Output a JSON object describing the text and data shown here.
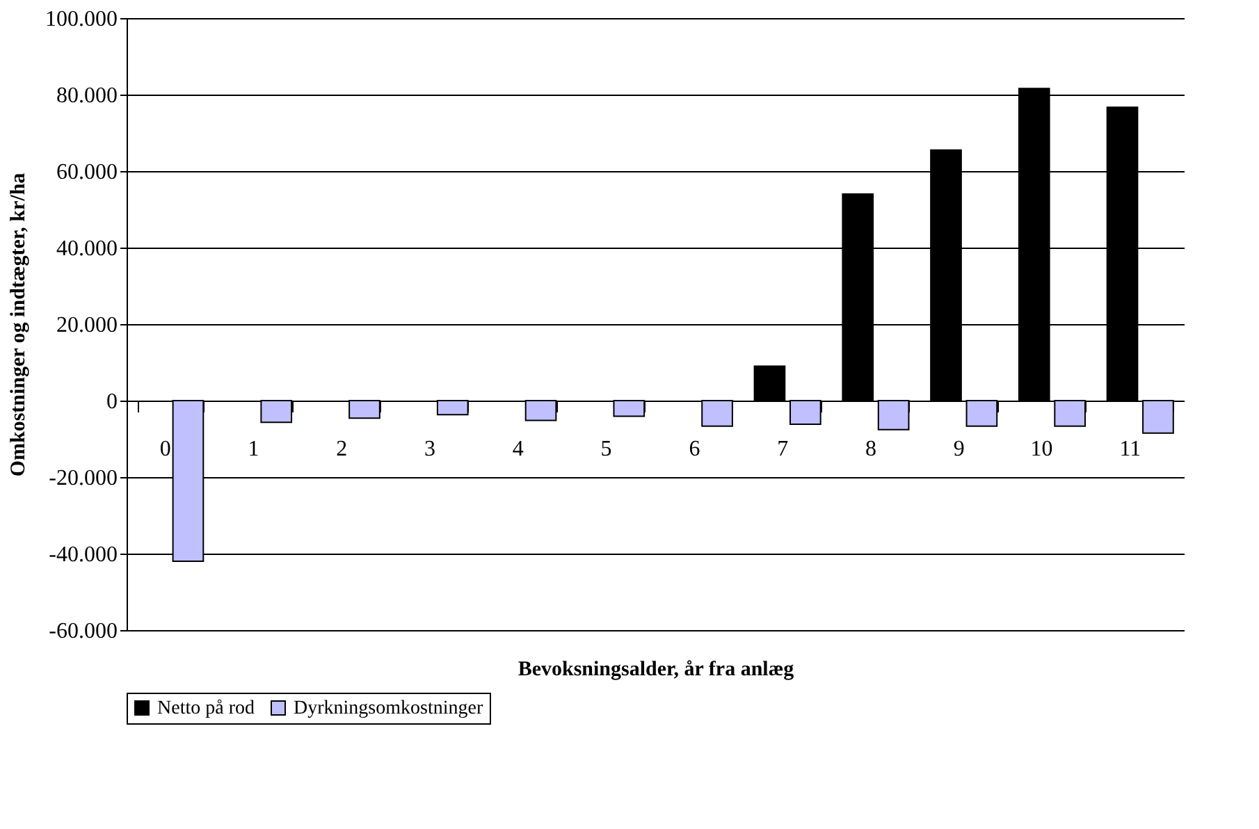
{
  "chart_data": {
    "type": "bar",
    "xlabel": "Bevoksningsalder, år fra anlæg",
    "ylabel": "Omkostninger og indtægter, kr/ha",
    "categories": [
      "0",
      "1",
      "2",
      "3",
      "4",
      "5",
      "6",
      "7",
      "8",
      "9",
      "10",
      "11"
    ],
    "series": [
      {
        "name": "Netto på rod",
        "color": "#000000",
        "values": [
          null,
          null,
          null,
          null,
          null,
          null,
          null,
          9000,
          54000,
          65500,
          81600,
          76700
        ]
      },
      {
        "name": "Dyrkningsomkostninger",
        "color": "#c0c0ff",
        "values": [
          -42000,
          -5700,
          -4600,
          -3700,
          -5200,
          -4100,
          -6700,
          -6200,
          -7600,
          -6700,
          -6700,
          -8500
        ]
      }
    ],
    "ylim": [
      -60000,
      100000
    ],
    "yticks": [
      {
        "value": -60000,
        "label": "-60.000"
      },
      {
        "value": -40000,
        "label": "-40.000"
      },
      {
        "value": -20000,
        "label": "-20.000"
      },
      0,
      {
        "value": 20000,
        "label": "20.000"
      },
      {
        "value": 40000,
        "label": "40.000"
      },
      {
        "value": 60000,
        "label": "60.000"
      },
      {
        "value": 80000,
        "label": "80.000"
      },
      {
        "value": 100000,
        "label": "100.000"
      }
    ],
    "grid": "y",
    "legend": "bottom"
  }
}
